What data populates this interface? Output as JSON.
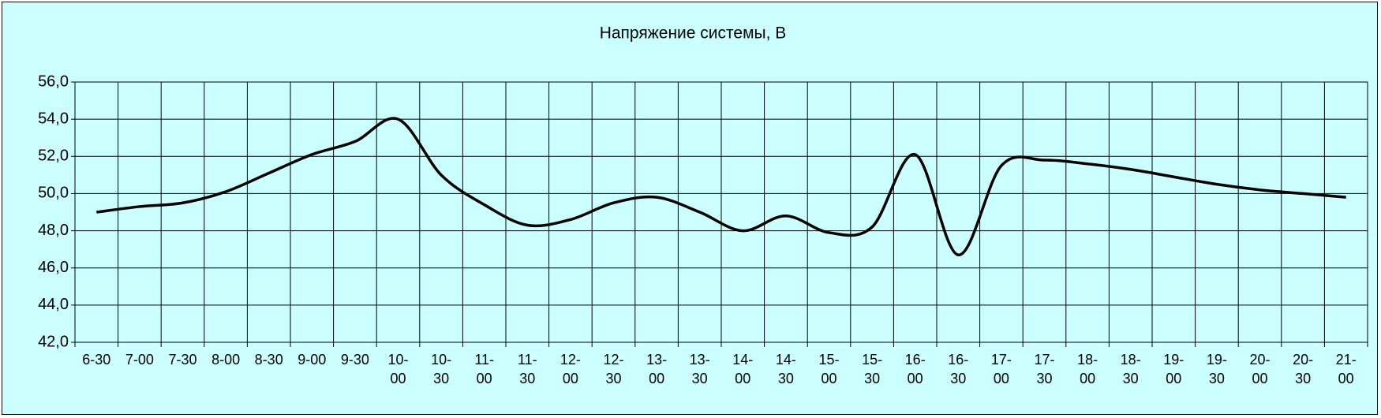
{
  "chart_data": {
    "type": "line",
    "title": "Напряжение системы, В",
    "categories": [
      "6-30",
      "7-00",
      "7-30",
      "8-00",
      "8-30",
      "9-00",
      "9-30",
      "10-00",
      "10-30",
      "11-00",
      "11-30",
      "12-00",
      "12-30",
      "13-00",
      "13-30",
      "14-00",
      "14-30",
      "15-00",
      "15-30",
      "16-00",
      "16-30",
      "17-00",
      "17-30",
      "18-00",
      "18-30",
      "19-00",
      "19-30",
      "20-00",
      "20-30",
      "21-00"
    ],
    "values": [
      49.0,
      49.3,
      49.5,
      50.1,
      51.1,
      52.1,
      52.8,
      54.0,
      51.0,
      49.4,
      48.3,
      48.6,
      49.5,
      49.8,
      49.0,
      48.0,
      48.8,
      47.9,
      48.2,
      52.1,
      46.7,
      51.5,
      51.8,
      51.6,
      51.3,
      50.9,
      50.5,
      50.2,
      50.0,
      49.8
    ],
    "color": "#000000",
    "ylim": [
      42,
      56
    ],
    "yticks": [
      {
        "value": 42,
        "label": "42,0"
      },
      {
        "value": 44,
        "label": "44,0"
      },
      {
        "value": 46,
        "label": "46,0"
      },
      {
        "value": 48,
        "label": "48,0"
      },
      {
        "value": 50,
        "label": "50,0"
      },
      {
        "value": 52,
        "label": "52,0"
      },
      {
        "value": 54,
        "label": "54,0"
      },
      {
        "value": 56,
        "label": "56,0"
      }
    ],
    "grid": true
  }
}
